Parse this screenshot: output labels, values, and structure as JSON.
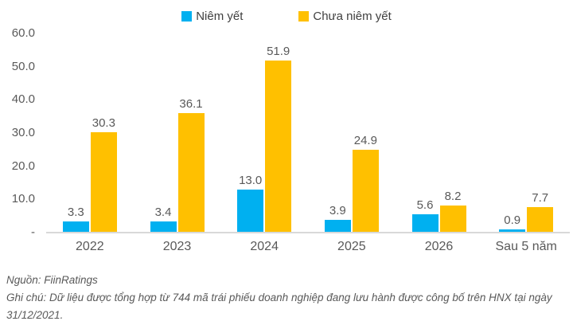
{
  "legend": [
    {
      "label": "Niêm yết",
      "color": "#00B0F0"
    },
    {
      "label": "Chưa niêm yết",
      "color": "#FFC000"
    }
  ],
  "chart_data": {
    "type": "bar",
    "categories": [
      "2022",
      "2023",
      "2024",
      "2025",
      "2026",
      "Sau 5 năm"
    ],
    "series": [
      {
        "name": "Niêm yết",
        "color": "#00B0F0",
        "values": [
          3.3,
          3.4,
          13.0,
          3.9,
          5.6,
          0.9
        ]
      },
      {
        "name": "Chưa niêm yết",
        "color": "#FFC000",
        "values": [
          30.3,
          36.1,
          51.9,
          24.9,
          8.2,
          7.7
        ]
      }
    ],
    "value_labels": {
      "Niêm yết": [
        "3.3",
        "3.4",
        "13.0",
        "3.9",
        "5.6",
        "0.9"
      ],
      "Chưa niêm yết": [
        "30.3",
        "36.1",
        "51.9",
        "24.9",
        "8.2",
        "7.7"
      ]
    },
    "y_ticks": [
      {
        "value": 60,
        "label": "60.0"
      },
      {
        "value": 50,
        "label": "50.0"
      },
      {
        "value": 40,
        "label": "40.0"
      },
      {
        "value": 30,
        "label": "30.0"
      },
      {
        "value": 20,
        "label": "20.0"
      },
      {
        "value": 10,
        "label": "10.0"
      },
      {
        "value": 0,
        "label": "-"
      }
    ],
    "ylim": [
      0,
      60
    ],
    "grid": false,
    "legend_position": "top-center",
    "axis_text_color": "#595959",
    "baseline_color": "#D9D9D9"
  },
  "footer": {
    "source": "Nguồn: FiinRatings",
    "note": "Ghi chú: Dữ liệu được tổng hợp từ 744 mã trái phiếu doanh nghiệp đang lưu hành được công bố trên HNX tại ngày 31/12/2021."
  }
}
